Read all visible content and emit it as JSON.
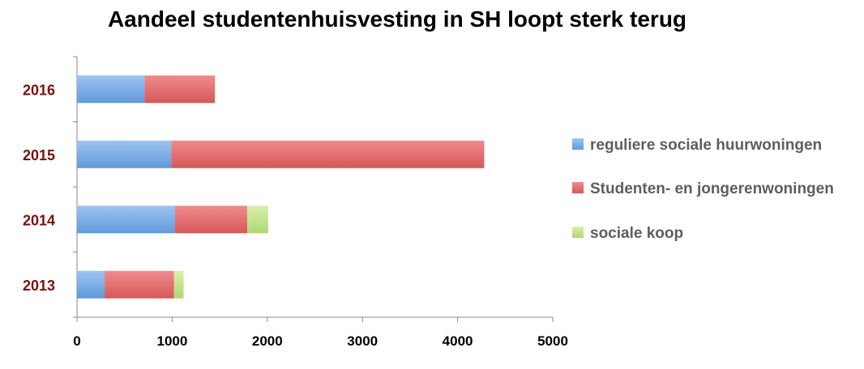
{
  "chart_data": {
    "type": "bar",
    "orientation": "horizontal",
    "stacked": true,
    "title": "Aandeel studentenhuisvesting in SH loopt sterk terug",
    "categories": [
      "2013",
      "2014",
      "2015",
      "2016"
    ],
    "series": [
      {
        "name": "reguliere sociale huurwoningen",
        "color": "#7aaee8",
        "values": [
          290,
          1030,
          990,
          710
        ]
      },
      {
        "name": "Studenten- en jongerenwoningen",
        "color": "#e46c6c",
        "values": [
          730,
          760,
          3290,
          740
        ]
      },
      {
        "name": "sociale koop",
        "color": "#c4e68a",
        "values": [
          100,
          220,
          0,
          0
        ]
      }
    ],
    "xlim": [
      0,
      5000
    ],
    "xticks": [
      "0",
      "1000",
      "2000",
      "3000",
      "4000",
      "5000"
    ],
    "xlabel": "",
    "ylabel": "",
    "grid": false,
    "legend_position": "right"
  }
}
